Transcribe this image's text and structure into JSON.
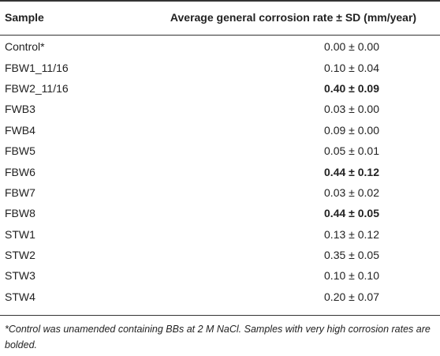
{
  "table": {
    "headers": [
      "Sample",
      "Average general corrosion rate ± SD (mm/year)"
    ],
    "rows": [
      {
        "sample": "Control*",
        "rate": "0.00 ± 0.00",
        "bold": false
      },
      {
        "sample": "FBW1_11/16",
        "rate": "0.10 ± 0.04",
        "bold": false
      },
      {
        "sample": "FBW2_11/16",
        "rate": "0.40 ± 0.09",
        "bold": true
      },
      {
        "sample": "FWB3",
        "rate": "0.03 ± 0.00",
        "bold": false
      },
      {
        "sample": "FWB4",
        "rate": "0.09 ± 0.00",
        "bold": false
      },
      {
        "sample": "FBW5",
        "rate": "0.05 ± 0.01",
        "bold": false
      },
      {
        "sample": "FBW6",
        "rate": "0.44 ± 0.12",
        "bold": true
      },
      {
        "sample": "FBW7",
        "rate": "0.03 ± 0.02",
        "bold": false
      },
      {
        "sample": "FBW8",
        "rate": "0.44 ± 0.05",
        "bold": true
      },
      {
        "sample": "STW1",
        "rate": "0.13 ± 0.12",
        "bold": false
      },
      {
        "sample": "STW2",
        "rate": "0.35 ± 0.05",
        "bold": false
      },
      {
        "sample": "STW3",
        "rate": "0.10 ± 0.10",
        "bold": false
      },
      {
        "sample": "STW4",
        "rate": "0.20 ± 0.07",
        "bold": false
      }
    ]
  },
  "footnote": "*Control was unamended containing BBs at 2 M NaCl. Samples with very high corrosion rates are bolded."
}
